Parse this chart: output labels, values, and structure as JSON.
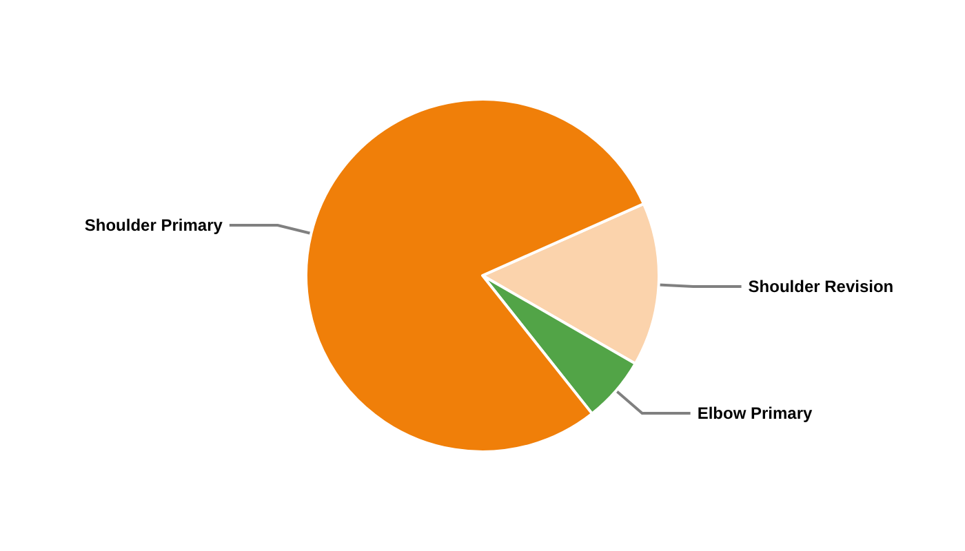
{
  "chart_data": {
    "type": "pie",
    "categories": [
      "Shoulder Revision",
      "Elbow Primary",
      "Shoulder Primary"
    ],
    "values": [
      15,
      6,
      79
    ],
    "colors": [
      "#fbd3ac",
      "#52a447",
      "#f07f09"
    ],
    "legend": false
  }
}
